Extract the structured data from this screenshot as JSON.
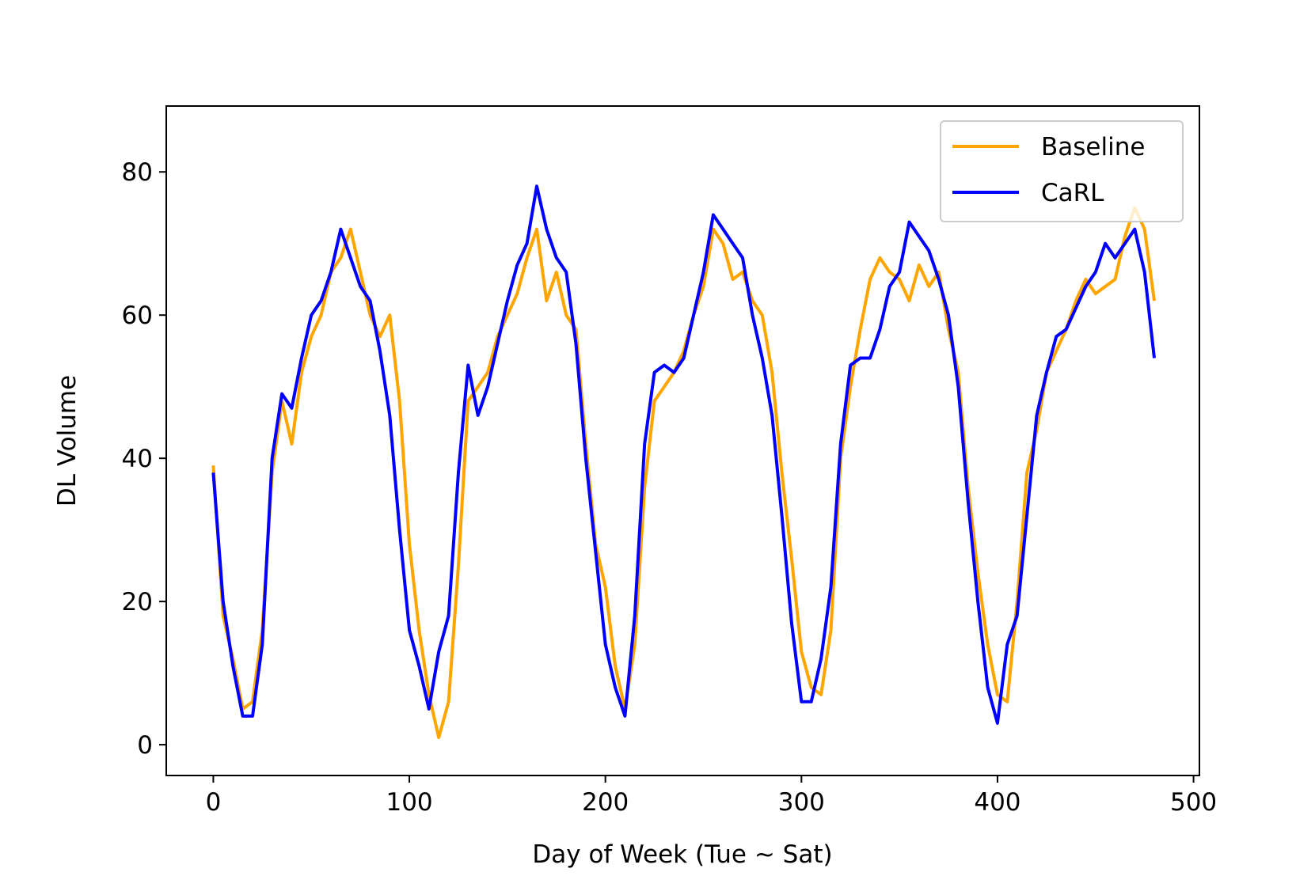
{
  "chart_data": {
    "type": "line",
    "xlabel": "Day of Week (Tue ~ Sat)",
    "ylabel": "DL Volume",
    "xlim": [
      -24,
      503
    ],
    "ylim": [
      -4.3,
      89.2
    ],
    "xticks": [
      0,
      100,
      200,
      300,
      400,
      500
    ],
    "xtick_labels": [
      "0",
      "100",
      "200",
      "300",
      "400",
      "500"
    ],
    "yticks": [
      0,
      20,
      40,
      60,
      80
    ],
    "ytick_labels": [
      "0",
      "20",
      "40",
      "60",
      "80"
    ],
    "grid": false,
    "legend_position": "top-right",
    "x": [
      0,
      5,
      10,
      15,
      20,
      25,
      30,
      35,
      40,
      45,
      50,
      55,
      60,
      65,
      70,
      75,
      80,
      85,
      90,
      95,
      100,
      105,
      110,
      115,
      120,
      125,
      130,
      135,
      140,
      145,
      150,
      155,
      160,
      165,
      170,
      175,
      180,
      185,
      190,
      195,
      200,
      205,
      210,
      215,
      220,
      225,
      230,
      235,
      240,
      245,
      250,
      255,
      260,
      265,
      270,
      275,
      280,
      285,
      290,
      295,
      300,
      305,
      310,
      315,
      320,
      325,
      330,
      335,
      340,
      345,
      350,
      355,
      360,
      365,
      370,
      375,
      380,
      385,
      390,
      395,
      400,
      405,
      410,
      415,
      420,
      425,
      430,
      435,
      440,
      445,
      450,
      455,
      460,
      465,
      470,
      475,
      480
    ],
    "series": [
      {
        "name": "Baseline",
        "color": "#ffa500",
        "values": [
          39,
          18,
          12,
          5,
          6,
          16,
          38,
          48,
          42,
          52,
          57,
          60,
          66,
          68,
          72,
          66,
          60,
          57,
          60,
          48,
          28,
          16,
          7,
          1,
          6,
          25,
          48,
          50,
          52,
          57,
          60,
          63,
          68,
          72,
          62,
          66,
          60,
          58,
          42,
          28,
          22,
          11,
          5,
          14,
          36,
          48,
          50,
          52,
          55,
          60,
          64,
          72,
          70,
          65,
          66,
          62,
          60,
          52,
          38,
          26,
          13,
          8,
          7,
          16,
          40,
          50,
          58,
          65,
          68,
          66,
          65,
          62,
          67,
          64,
          66,
          58,
          52,
          36,
          24,
          14,
          7,
          6,
          20,
          38,
          44,
          52,
          55,
          58,
          62,
          65,
          63,
          64,
          65,
          71,
          75,
          72,
          62
        ]
      },
      {
        "name": "CaRL",
        "color": "#0000ff",
        "values": [
          38,
          20,
          11,
          4,
          4,
          14,
          40,
          49,
          47,
          54,
          60,
          62,
          66,
          72,
          68,
          64,
          62,
          55,
          46,
          30,
          16,
          11,
          5,
          13,
          18,
          38,
          53,
          46,
          50,
          56,
          62,
          67,
          70,
          78,
          72,
          68,
          66,
          56,
          40,
          27,
          14,
          8,
          4,
          18,
          42,
          52,
          53,
          52,
          54,
          60,
          66,
          74,
          72,
          70,
          68,
          60,
          54,
          46,
          32,
          17,
          6,
          6,
          12,
          22,
          42,
          53,
          54,
          54,
          58,
          64,
          66,
          73,
          71,
          69,
          65,
          60,
          50,
          34,
          20,
          8,
          3,
          14,
          18,
          32,
          46,
          52,
          57,
          58,
          61,
          64,
          66,
          70,
          68,
          70,
          72,
          66,
          54
        ]
      }
    ]
  }
}
